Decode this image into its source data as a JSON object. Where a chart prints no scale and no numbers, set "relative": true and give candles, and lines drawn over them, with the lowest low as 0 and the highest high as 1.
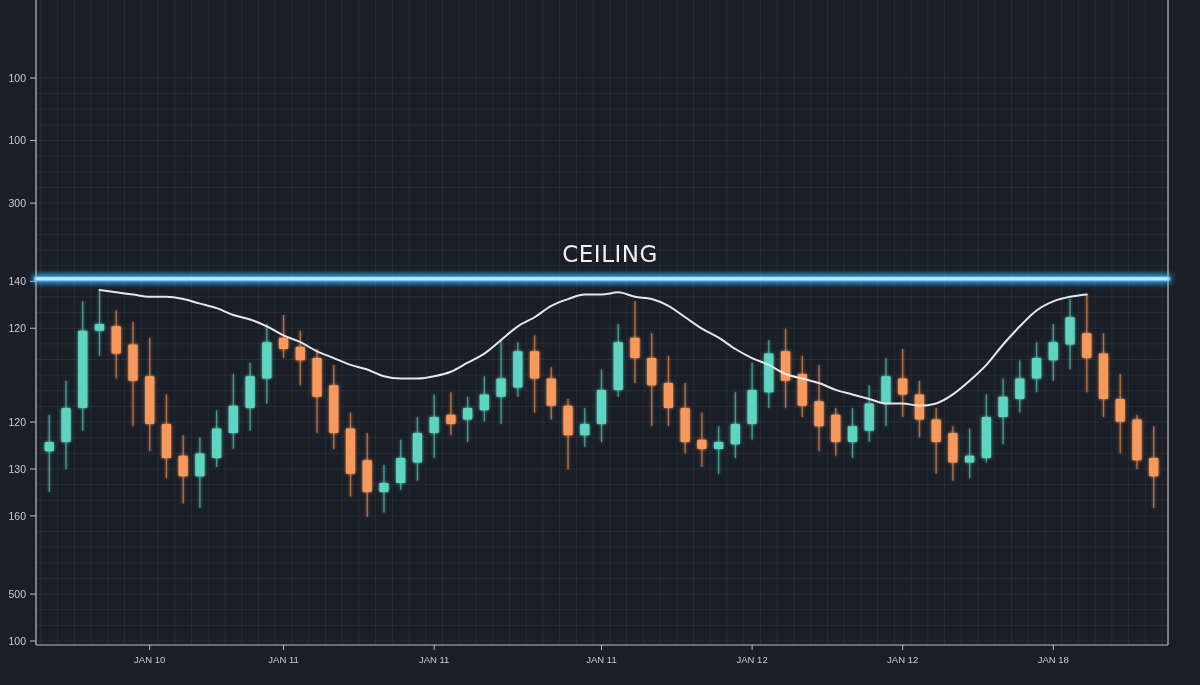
{
  "chart_data": {
    "type": "candlestick",
    "relative": true,
    "categories": [
      null,
      null,
      null,
      null,
      null,
      null,
      "JAN 10",
      null,
      null,
      null,
      null,
      null,
      null,
      null,
      "JAN 11",
      null,
      null,
      null,
      null,
      null,
      null,
      null,
      null,
      "JAN 11",
      null,
      null,
      null,
      null,
      null,
      null,
      null,
      null,
      null,
      "JAN 11",
      null,
      null,
      null,
      null,
      null,
      null,
      null,
      null,
      "JAN 12",
      null,
      null,
      null,
      null,
      null,
      null,
      null,
      null,
      "JAN 12",
      null,
      null,
      null,
      null,
      null,
      null,
      null,
      null,
      "JAN 18",
      null,
      null,
      null,
      null,
      null,
      null
    ],
    "y_categories": [
      "100",
      null,
      null,
      null,
      "100",
      null,
      null,
      null,
      "300",
      null,
      null,
      null,
      null,
      "140",
      null,
      null,
      "120",
      null,
      null,
      null,
      null,
      null,
      "120",
      null,
      null,
      "130",
      null,
      null,
      "160",
      null,
      null,
      null,
      null,
      "500",
      null,
      null,
      "100"
    ],
    "ohlc": [
      [
        0.29,
        0.45,
        0.11,
        0.33
      ],
      [
        0.33,
        0.6,
        0.21,
        0.48
      ],
      [
        0.48,
        0.95,
        0.38,
        0.82
      ],
      [
        0.82,
        1.0,
        0.71,
        0.85
      ],
      [
        0.84,
        0.91,
        0.61,
        0.72
      ],
      [
        0.76,
        0.86,
        0.4,
        0.6
      ],
      [
        0.62,
        0.79,
        0.29,
        0.41
      ],
      [
        0.41,
        0.54,
        0.17,
        0.26
      ],
      [
        0.27,
        0.36,
        0.06,
        0.18
      ],
      [
        0.18,
        0.35,
        0.04,
        0.28
      ],
      [
        0.26,
        0.47,
        0.22,
        0.39
      ],
      [
        0.37,
        0.63,
        0.3,
        0.49
      ],
      [
        0.48,
        0.68,
        0.38,
        0.62
      ],
      [
        0.61,
        0.85,
        0.5,
        0.77
      ],
      [
        0.79,
        0.89,
        0.7,
        0.74
      ],
      [
        0.75,
        0.82,
        0.58,
        0.69
      ],
      [
        0.7,
        0.74,
        0.37,
        0.53
      ],
      [
        0.58,
        0.67,
        0.3,
        0.37
      ],
      [
        0.39,
        0.46,
        0.09,
        0.19
      ],
      [
        0.25,
        0.37,
        0.0,
        0.11
      ],
      [
        0.11,
        0.23,
        0.02,
        0.15
      ],
      [
        0.15,
        0.34,
        0.12,
        0.26
      ],
      [
        0.24,
        0.44,
        0.16,
        0.37
      ],
      [
        0.37,
        0.54,
        0.26,
        0.44
      ],
      [
        0.45,
        0.55,
        0.36,
        0.41
      ],
      [
        0.43,
        0.53,
        0.33,
        0.48
      ],
      [
        0.47,
        0.62,
        0.42,
        0.54
      ],
      [
        0.53,
        0.78,
        0.41,
        0.61
      ],
      [
        0.57,
        0.77,
        0.53,
        0.73
      ],
      [
        0.73,
        0.8,
        0.46,
        0.61
      ],
      [
        0.61,
        0.66,
        0.43,
        0.49
      ],
      [
        0.49,
        0.52,
        0.21,
        0.36
      ],
      [
        0.36,
        0.48,
        0.31,
        0.41
      ],
      [
        0.41,
        0.65,
        0.33,
        0.56
      ],
      [
        0.56,
        0.85,
        0.53,
        0.77
      ],
      [
        0.79,
        0.95,
        0.59,
        0.7
      ],
      [
        0.7,
        0.81,
        0.4,
        0.58
      ],
      [
        0.59,
        0.71,
        0.4,
        0.48
      ],
      [
        0.48,
        0.59,
        0.28,
        0.33
      ],
      [
        0.34,
        0.46,
        0.22,
        0.3
      ],
      [
        0.3,
        0.4,
        0.19,
        0.33
      ],
      [
        0.32,
        0.55,
        0.26,
        0.41
      ],
      [
        0.41,
        0.68,
        0.34,
        0.56
      ],
      [
        0.55,
        0.78,
        0.48,
        0.72
      ],
      [
        0.73,
        0.83,
        0.48,
        0.6
      ],
      [
        0.63,
        0.71,
        0.44,
        0.49
      ],
      [
        0.51,
        0.67,
        0.29,
        0.4
      ],
      [
        0.45,
        0.48,
        0.27,
        0.33
      ],
      [
        0.33,
        0.48,
        0.26,
        0.4
      ],
      [
        0.38,
        0.58,
        0.33,
        0.5
      ],
      [
        0.5,
        0.7,
        0.4,
        0.62
      ],
      [
        0.61,
        0.74,
        0.44,
        0.54
      ],
      [
        0.54,
        0.6,
        0.35,
        0.43
      ],
      [
        0.43,
        0.48,
        0.19,
        0.33
      ],
      [
        0.37,
        0.4,
        0.16,
        0.24
      ],
      [
        0.24,
        0.39,
        0.17,
        0.27
      ],
      [
        0.26,
        0.54,
        0.24,
        0.44
      ],
      [
        0.44,
        0.61,
        0.32,
        0.53
      ],
      [
        0.52,
        0.69,
        0.46,
        0.61
      ],
      [
        0.61,
        0.77,
        0.55,
        0.7
      ],
      [
        0.69,
        0.85,
        0.6,
        0.77
      ],
      [
        0.76,
        0.96,
        0.65,
        0.88
      ],
      [
        0.81,
        0.98,
        0.55,
        0.7
      ],
      [
        0.72,
        0.81,
        0.44,
        0.52
      ],
      [
        0.52,
        0.63,
        0.28,
        0.42
      ],
      [
        0.43,
        0.45,
        0.21,
        0.25
      ],
      [
        0.26,
        0.4,
        0.04,
        0.18
      ]
    ],
    "colors": [
      "#5ed5c1",
      "#5ed5c1",
      "#5ed5c1",
      "#5ed5c1",
      "#f7995c",
      "#f7995c",
      "#f7995c",
      "#f7995c",
      "#f7995c",
      "#5ed5c1",
      "#5ed5c1",
      "#5ed5c1",
      "#5ed5c1",
      "#5ed5c1",
      "#f7995c",
      "#f7995c",
      "#f7995c",
      "#f7995c",
      "#f7995c",
      "#f7995c",
      "#5ed5c1",
      "#5ed5c1",
      "#5ed5c1",
      "#5ed5c1",
      "#f7995c",
      "#5ed5c1",
      "#5ed5c1",
      "#5ed5c1",
      "#5ed5c1",
      "#f7995c",
      "#f7995c",
      "#f7995c",
      "#5ed5c1",
      "#5ed5c1",
      "#5ed5c1",
      "#f7995c",
      "#f7995c",
      "#f7995c",
      "#f7995c",
      "#f7995c",
      "#5ed5c1",
      "#5ed5c1",
      "#5ed5c1",
      "#5ed5c1",
      "#f7995c",
      "#f7995c",
      "#f7995c",
      "#f7995c",
      "#5ed5c1",
      "#5ed5c1",
      "#5ed5c1",
      "#f7995c",
      "#f7995c",
      "#f7995c",
      "#f7995c",
      "#5ed5c1",
      "#5ed5c1",
      "#5ed5c1",
      "#5ed5c1",
      "#5ed5c1",
      "#5ed5c1",
      "#5ed5c1",
      "#f7995c",
      "#f7995c",
      "#f7995c",
      "#f7995c",
      "#f7995c"
    ],
    "series": [
      {
        "type": "line",
        "color": "#e4e6ec",
        "values": [
          null,
          null,
          null,
          1.0,
          0.99,
          0.98,
          0.97,
          0.97,
          0.96,
          0.94,
          0.92,
          0.89,
          0.87,
          0.84,
          0.8,
          0.77,
          0.73,
          0.7,
          0.67,
          0.65,
          0.62,
          0.61,
          0.61,
          0.62,
          0.64,
          0.68,
          0.72,
          0.78,
          0.84,
          0.88,
          0.93,
          0.96,
          0.98,
          0.98,
          0.99,
          0.97,
          0.96,
          0.93,
          0.88,
          0.83,
          0.79,
          0.74,
          0.7,
          0.67,
          0.63,
          0.61,
          0.59,
          0.56,
          0.54,
          0.52,
          0.5,
          0.5,
          0.49,
          0.5,
          0.54,
          0.6,
          0.67,
          0.76,
          0.84,
          0.91,
          0.95,
          0.97,
          0.98,
          null,
          null,
          null,
          null
        ]
      }
    ],
    "ref_lines": [
      {
        "axis": "y",
        "value": 1.05,
        "label": "CEILING",
        "color": "#3db4ff"
      }
    ],
    "grid": true
  }
}
